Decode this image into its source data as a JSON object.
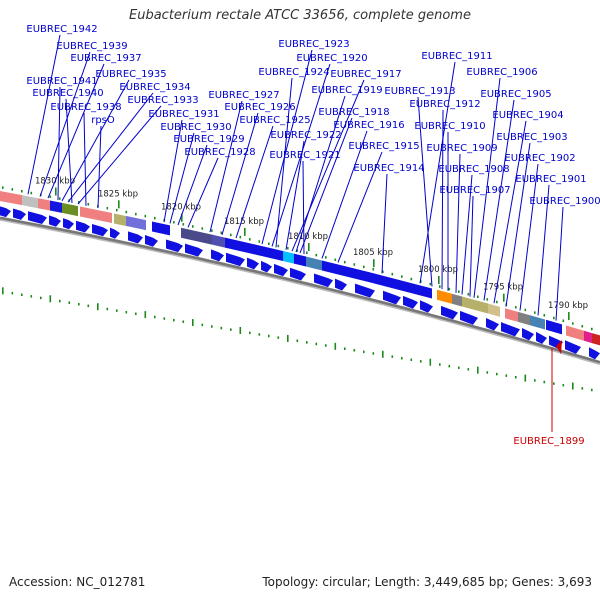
{
  "title": "Eubacterium rectale ATCC 33656, complete genome",
  "footer": {
    "accession": "Accession: NC_012781",
    "topology": "Topology: circular; Length: 3,449,685 bp; Genes: 3,693"
  },
  "scale": {
    "units": "kbp",
    "ticks": [
      "1830 kbp",
      "1825 kbp",
      "1820 kbp",
      "1815 kbp",
      "1810 kbp",
      "1805 kbp",
      "1800 kbp",
      "1795 kbp",
      "1790 kbp"
    ]
  },
  "genes": [
    "EUBREC_1942",
    "EUBREC_1939",
    "EUBREC_1937",
    "EUBREC_1935",
    "EUBREC_1941",
    "EUBREC_1934",
    "EUBREC_1940",
    "EUBREC_1933",
    "EUBREC_1938",
    "rpsO",
    "EUBREC_1931",
    "EUBREC_1930",
    "EUBREC_1929",
    "EUBREC_1928",
    "EUBREC_1927",
    "EUBREC_1926",
    "EUBREC_1925",
    "EUBREC_1923",
    "EUBREC_1920",
    "EUBREC_1924",
    "EUBREC_1917",
    "EUBREC_1919",
    "EUBREC_1918",
    "EUBREC_1922",
    "EUBREC_1916",
    "EUBREC_1921",
    "EUBREC_1915",
    "EUBREC_1914",
    "EUBREC_1911",
    "EUBREC_1906",
    "EUBREC_1913",
    "EUBREC_1912",
    "EUBREC_1905",
    "EUBREC_1910",
    "EUBREC_1904",
    "EUBREC_1909",
    "EUBREC_1903",
    "EUBREC_1908",
    "EUBREC_1902",
    "EUBREC_1907",
    "EUBREC_1901",
    "EUBREC_1900"
  ],
  "highlighted_gene": "EUBREC_1899",
  "colors": {
    "gene_label": "#0000cc",
    "highlight_label": "#cc0000",
    "gene_arrow": "#1010e0",
    "tick": "#1a8a1a",
    "backbone": "#888888"
  }
}
